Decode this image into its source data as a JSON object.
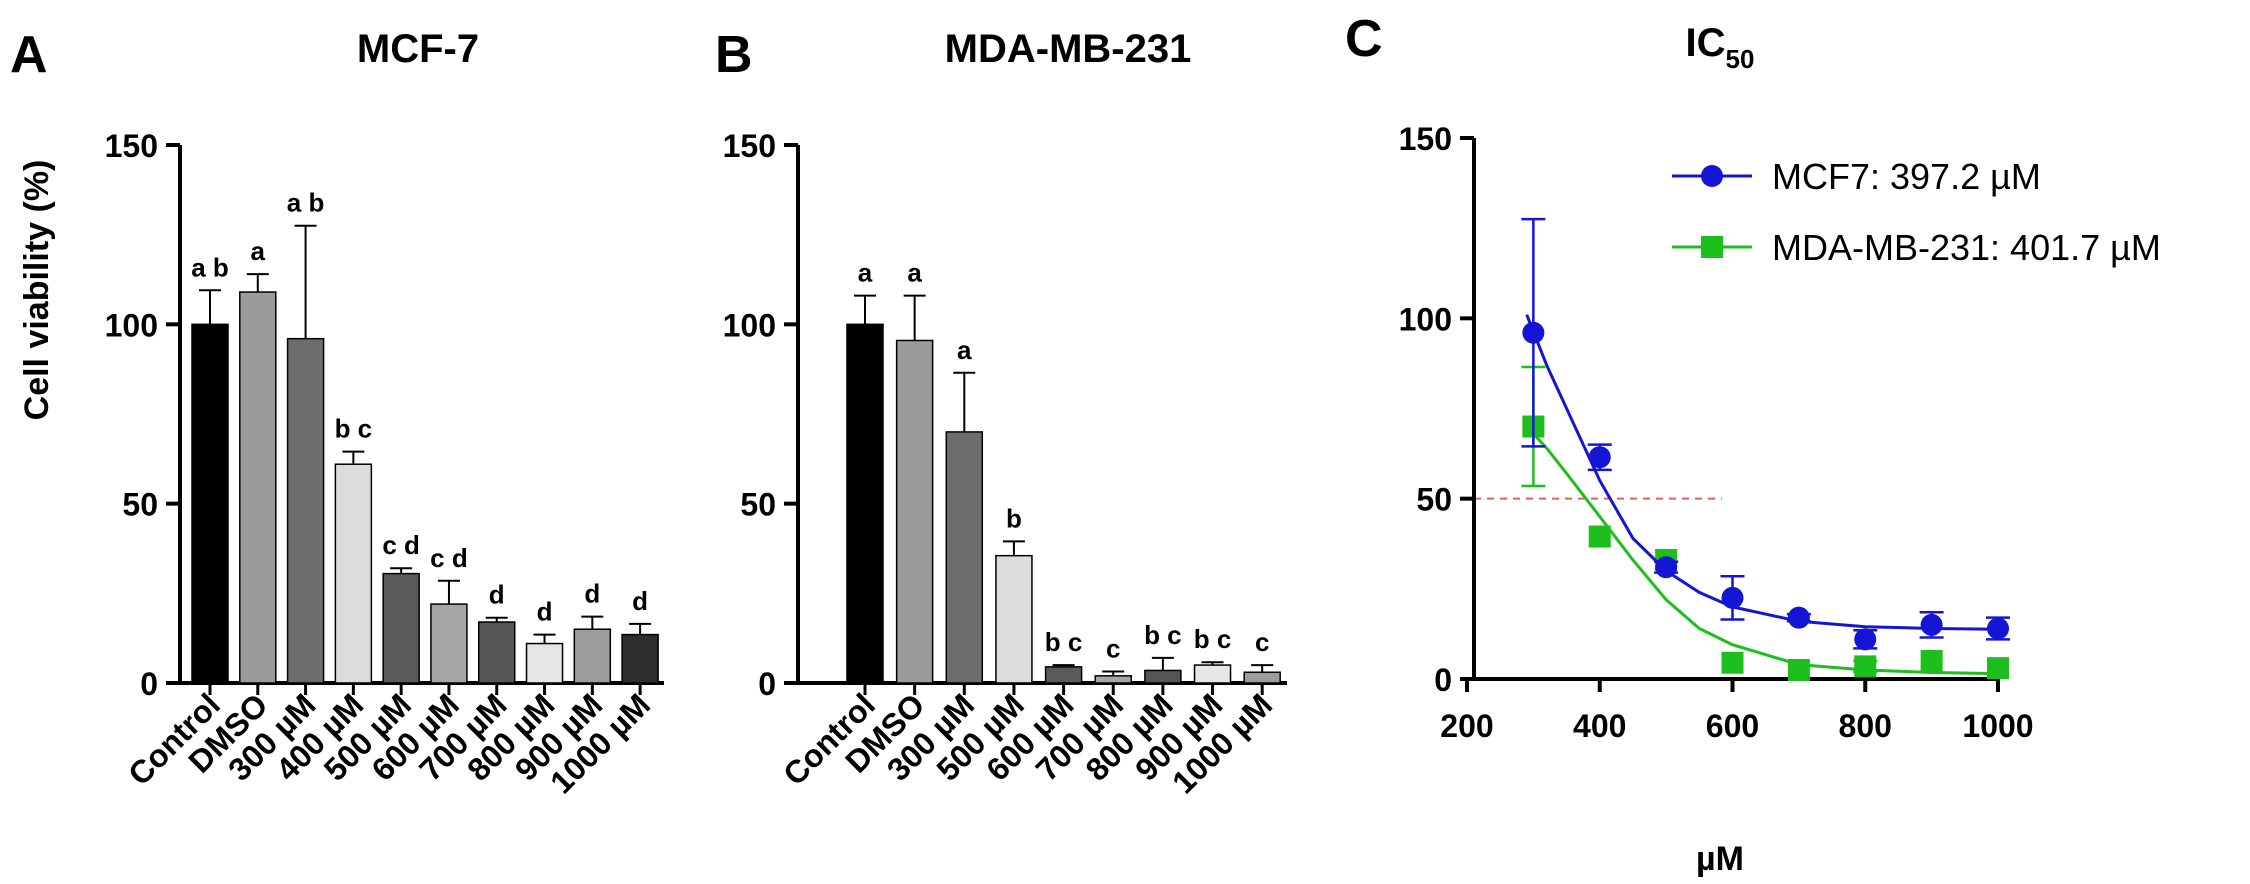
{
  "panels": {
    "a_letter": "A",
    "b_letter": "B",
    "c_letter": "C"
  },
  "chart_data": [
    {
      "type": "bar",
      "title": "MCF-7",
      "ylabel": "Cell viability (%)",
      "xlabel": "",
      "ylim": [
        0,
        150
      ],
      "yticks": [
        "0",
        "50",
        "100",
        "150"
      ],
      "categories": [
        "Control",
        "DMSO",
        "300 µM",
        "400 µM",
        "500 µM",
        "600 µM",
        "700 µM",
        "800 µM",
        "900 µM",
        "1000 µM"
      ],
      "values": [
        100,
        109,
        96,
        61,
        30.5,
        22,
        17,
        11,
        15,
        13.5
      ],
      "errors": [
        9.5,
        5,
        31.5,
        3.5,
        1.5,
        6.5,
        1.2,
        2.5,
        3.5,
        3
      ],
      "letters": [
        "a b",
        "a",
        "a b",
        "b c",
        "c d",
        "c d",
        "d",
        "d",
        "d",
        "d"
      ],
      "colors": [
        "#000000",
        "#9b9b9b",
        "#6c6c6c",
        "#dcdcdc",
        "#5a5a5a",
        "#a6a6a6",
        "#555555",
        "#e6e6e6",
        "#9c9c9c",
        "#2e2e2e"
      ]
    },
    {
      "type": "bar",
      "title": "MDA-MB-231",
      "ylabel": "",
      "xlabel": "",
      "ylim": [
        0,
        150
      ],
      "yticks": [
        "0",
        "50",
        "100",
        "150"
      ],
      "categories": [
        "Control",
        "DMSO",
        "300 µM",
        "500 µM",
        "600 µM",
        "700 µM",
        "800 µM",
        "900 µM",
        "1000 µM"
      ],
      "values": [
        100,
        95.5,
        70,
        35.5,
        4.5,
        2,
        3.5,
        5,
        3
      ],
      "errors": [
        8,
        12.5,
        16.5,
        4,
        0.5,
        1.2,
        3.5,
        0.8,
        2
      ],
      "letters": [
        "a",
        "a",
        "a",
        "b",
        "b c",
        "c",
        "b c",
        "b c",
        "c"
      ],
      "colors": [
        "#000000",
        "#9b9b9b",
        "#6c6c6c",
        "#dcdcdc",
        "#5a5a5a",
        "#a6a6a6",
        "#555555",
        "#e6e6e6",
        "#9c9c9c"
      ]
    },
    {
      "type": "scatter",
      "title_main": "IC",
      "title_sub": "50",
      "xlabel": "µM",
      "ylabel": "",
      "xlim": [
        200,
        1000
      ],
      "ylim": [
        0,
        150
      ],
      "xticks": [
        "200",
        "400",
        "600",
        "800",
        "1000"
      ],
      "yticks": [
        "0",
        "50",
        "100",
        "150"
      ],
      "reference_line": 50,
      "series": [
        {
          "name": "MCF7: 397.2 µM",
          "color": "#1515d6",
          "marker": "circle",
          "x": [
            300,
            400,
            500,
            600,
            700,
            800,
            900,
            1000
          ],
          "y": [
            96,
            61.5,
            31,
            22.5,
            17,
            11,
            15,
            14
          ],
          "err": [
            31.5,
            3.5,
            1.5,
            6,
            1,
            2.5,
            3.5,
            3
          ],
          "fit": [
            [
              290,
              101
            ],
            [
              320,
              87
            ],
            [
              360,
              71
            ],
            [
              400,
              55
            ],
            [
              450,
              39
            ],
            [
              500,
              30
            ],
            [
              550,
              24
            ],
            [
              600,
              20
            ],
            [
              700,
              16
            ],
            [
              800,
              14.5
            ],
            [
              900,
              14
            ],
            [
              1000,
              13.8
            ]
          ]
        },
        {
          "name": "MDA-MB-231: 401.7 µM",
          "color": "#1cbf1c",
          "marker": "square",
          "x": [
            300,
            400,
            500,
            600,
            700,
            800,
            900,
            1000
          ],
          "y": [
            70,
            39.5,
            33,
            4.5,
            2.5,
            3.5,
            5,
            3
          ],
          "err": [
            16.5,
            0,
            0,
            0,
            0,
            1.5,
            0,
            0
          ],
          "fit": [
            [
              290,
              70
            ],
            [
              320,
              64
            ],
            [
              350,
              57
            ],
            [
              400,
              45
            ],
            [
              450,
              33
            ],
            [
              500,
              22
            ],
            [
              550,
              14
            ],
            [
              600,
              9.5
            ],
            [
              700,
              4
            ],
            [
              800,
              2.5
            ],
            [
              900,
              1.8
            ],
            [
              1000,
              1.5
            ]
          ]
        }
      ]
    }
  ]
}
